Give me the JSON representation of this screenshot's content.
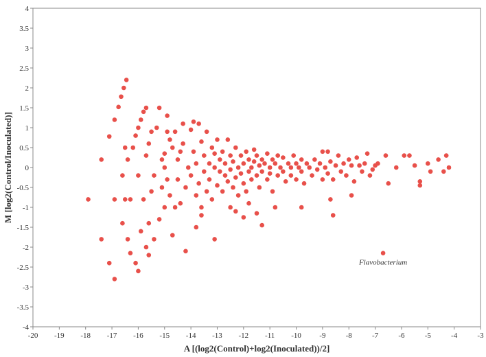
{
  "chart_data": {
    "type": "scatter",
    "xlabel": "A [(log2(Control)+log2(Inoculated))/2]",
    "ylabel": "M [log2(Control/Inoculated)]",
    "color": "#e8504a",
    "annotation": {
      "text": "Flavobacterium",
      "x": -6.7,
      "y": -2.15
    },
    "xlim": [
      -20,
      -3
    ],
    "ylim": [
      -4,
      4
    ],
    "xticks": [
      -20,
      -19,
      -18,
      -17,
      -16,
      -15,
      -14,
      -13,
      -12,
      -11,
      -10,
      -9,
      -8,
      -7,
      -6,
      -5,
      -4,
      -3
    ],
    "yticks": [
      -4,
      -3.5,
      -3,
      -2.5,
      -2,
      -1.5,
      -1,
      -0.5,
      0,
      0.5,
      1,
      1.5,
      2,
      2.5,
      3,
      3.5,
      4
    ],
    "x": [
      -17.9,
      -17.4,
      -17.4,
      -17.1,
      -17.1,
      -16.9,
      -16.9,
      -16.9,
      -16.75,
      -16.65,
      -16.55,
      -16.45,
      -16.6,
      -16.6,
      -16.5,
      -16.5,
      -16.4,
      -16.4,
      -16.3,
      -16.3,
      -16.2,
      -16.1,
      -16.0,
      -16.1,
      -16.0,
      -16.0,
      -15.9,
      -15.8,
      -15.9,
      -15.8,
      -15.7,
      -15.7,
      -15.6,
      -15.6,
      -15.7,
      -15.6,
      -15.5,
      -15.5,
      -15.4,
      -15.4,
      -15.3,
      -15.2,
      -15.2,
      -15.1,
      -15.0,
      -14.9,
      -14.8,
      -14.7,
      -14.7,
      -8.8,
      -8.6,
      -8.7,
      -7.9,
      -7.6,
      -7.3,
      -7.2,
      -6.9,
      -6.6,
      -6.5,
      -6.2,
      -5.9,
      -5.7,
      -5.5,
      -5.3,
      -5.3,
      -5.0,
      -4.9,
      -4.6,
      -4.4,
      -4.3,
      -4.2,
      -6.7,
      -14.2,
      -13.1,
      -13.8,
      -11.5,
      -11.3,
      -10.8,
      -9.8,
      -12.5,
      -14.6,
      -14.5,
      -14.5,
      -14.4,
      -14.3,
      -14.3,
      -14.2,
      -14.1,
      -14.0,
      -14.0,
      -13.9,
      -13.9,
      -13.8,
      -13.8,
      -13.7,
      -13.7,
      -13.6,
      -13.6,
      -13.5,
      -13.5,
      -13.4,
      -13.4,
      -13.3,
      -13.3,
      -13.2,
      -13.2,
      -13.1,
      -13.1,
      -13.0,
      -13.0,
      -12.9,
      -12.9,
      -12.8,
      -12.8,
      -12.7,
      -12.7,
      -12.6,
      -12.6,
      -12.5,
      -12.5,
      -12.4,
      -12.4,
      -12.3,
      -12.3,
      -12.2,
      -12.2,
      -12.1,
      -12.1,
      -12.0,
      -12.0,
      -11.9,
      -11.9,
      -11.8,
      -11.8,
      -11.7,
      -11.7,
      -11.6,
      -11.6,
      -11.5,
      -11.5,
      -11.4,
      -11.4,
      -11.3,
      -11.3,
      -11.2,
      -11.1,
      -11.1,
      -11.0,
      -11.0,
      -10.9,
      -10.9,
      -10.8,
      -10.7,
      -10.7,
      -10.6,
      -10.5,
      -10.5,
      -10.4,
      -10.3,
      -10.2,
      -10.2,
      -10.1,
      -10.0,
      -10.0,
      -9.9,
      -9.8,
      -9.8,
      -9.7,
      -9.6,
      -9.5,
      -9.4,
      -9.3,
      -9.2,
      -9.1,
      -9.0,
      -9.0,
      -8.9,
      -8.8,
      -8.7,
      -8.6,
      -8.5,
      -8.4,
      -8.3,
      -8.2,
      -8.1,
      -8.0,
      -7.9,
      -7.8,
      -7.7,
      -7.5,
      -7.4,
      -7.1,
      -7.0,
      -15.0,
      -14.9,
      -14.8,
      -14.6,
      -15.1,
      -14.4,
      -12.3,
      -11.8,
      -13.6,
      -12.0,
      -15.0,
      -14.9
    ],
    "values": [
      -0.8,
      0.2,
      -1.8,
      0.78,
      -2.4,
      1.2,
      -0.8,
      -2.8,
      1.52,
      1.78,
      2.0,
      2.2,
      -0.2,
      -1.4,
      0.5,
      -0.8,
      0.2,
      -1.8,
      -2.15,
      -0.8,
      0.5,
      -2.4,
      -2.6,
      0.8,
      1.0,
      -0.2,
      1.2,
      1.4,
      -1.6,
      -0.8,
      1.5,
      -2.0,
      -2.2,
      -1.4,
      0.3,
      0.6,
      0.9,
      -0.6,
      -0.2,
      -1.8,
      1.0,
      1.5,
      -1.3,
      0.2,
      -1.0,
      1.3,
      -0.7,
      -1.7,
      0.5,
      0.4,
      -1.2,
      -0.8,
      -0.7,
      0.05,
      0.35,
      -0.2,
      0.1,
      0.3,
      -0.4,
      0.0,
      0.3,
      0.3,
      0.05,
      -0.35,
      -0.45,
      0.1,
      -0.1,
      0.2,
      -0.1,
      0.3,
      0.0,
      -2.15,
      -2.1,
      -1.8,
      -1.5,
      -1.15,
      -1.45,
      -1.0,
      -1.0,
      -1.0,
      0.9,
      0.2,
      -0.3,
      -0.9,
      1.1,
      0.6,
      -0.5,
      0.0,
      0.95,
      -0.2,
      1.15,
      0.4,
      -0.7,
      0.1,
      1.1,
      -0.4,
      0.65,
      -1.0,
      0.3,
      -0.1,
      0.9,
      -0.6,
      0.1,
      -0.3,
      0.5,
      -0.8,
      0.0,
      0.35,
      -0.45,
      0.7,
      -0.1,
      0.2,
      -0.6,
      0.4,
      -0.2,
      0.1,
      0.7,
      -0.35,
      0.3,
      -0.05,
      -0.5,
      0.15,
      0.5,
      -0.25,
      0.0,
      -0.7,
      0.3,
      -0.15,
      0.1,
      -0.4,
      0.4,
      -0.6,
      0.2,
      -0.1,
      0.0,
      -0.3,
      0.45,
      0.15,
      -0.2,
      0.3,
      0.05,
      -0.5,
      0.2,
      -0.1,
      0.1,
      -0.3,
      0.35,
      0.0,
      -0.15,
      0.2,
      -0.6,
      0.1,
      -0.2,
      0.3,
      0.0,
      -0.1,
      0.25,
      -0.35,
      0.1,
      0.0,
      -0.2,
      0.3,
      0.1,
      -0.3,
      0.0,
      0.2,
      -0.1,
      -0.4,
      0.1,
      0.0,
      -0.2,
      0.2,
      -0.05,
      0.1,
      0.4,
      -0.3,
      0.0,
      -0.15,
      0.15,
      -0.3,
      0.05,
      0.3,
      -0.1,
      0.1,
      -0.2,
      0.2,
      0.05,
      -0.35,
      0.25,
      -0.1,
      0.1,
      -0.05,
      0.05,
      0.0,
      -0.3,
      0.7,
      -1.0,
      -0.5,
      0.4,
      -1.1,
      -0.9,
      -1.2,
      -1.25,
      0.35,
      0.9
    ]
  }
}
